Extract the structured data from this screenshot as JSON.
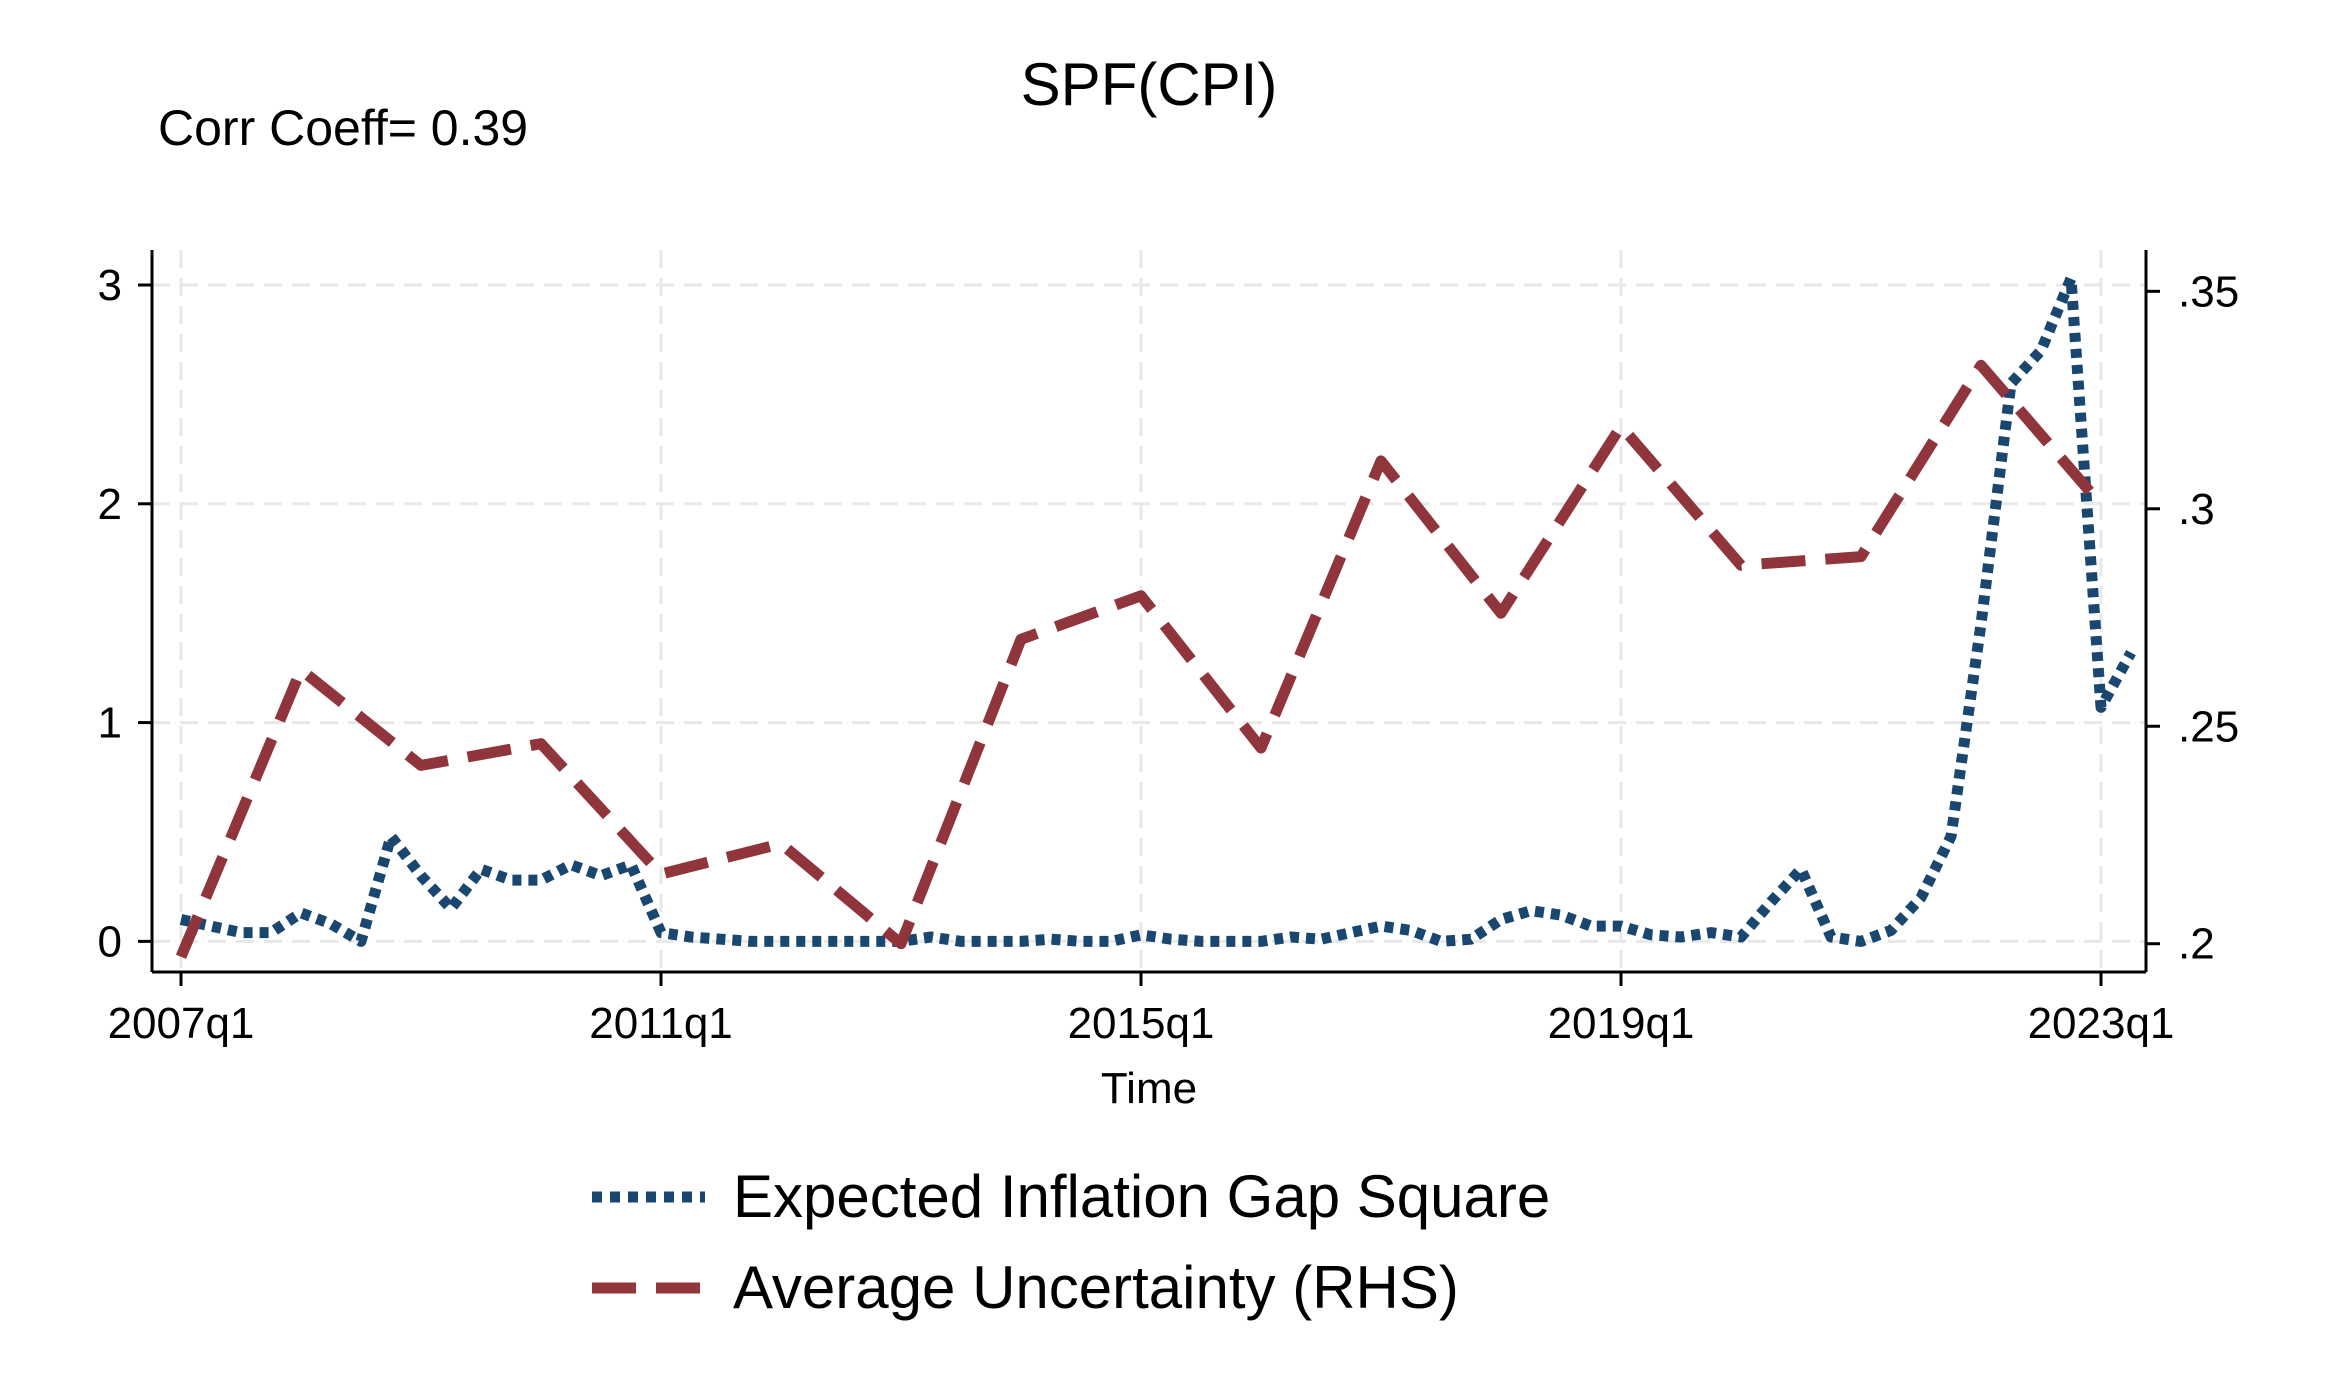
{
  "chart_data": {
    "type": "line",
    "title": "SPF(CPI)",
    "subtitle": "Corr Coeff= 0.39",
    "xlabel": "Time",
    "x_ticks": [
      "2007q1",
      "2011q1",
      "2015q1",
      "2019q1",
      "2023q1"
    ],
    "xlim": [
      "2007q1",
      "2023q3"
    ],
    "y_left": {
      "ticks": [
        "0",
        "1",
        "2",
        "3"
      ],
      "ylim": [
        -0.14,
        3.16
      ]
    },
    "y_right": {
      "ticks": [
        ".2",
        ".25",
        ".3",
        ".35"
      ],
      "ylim": [
        0.1935,
        0.3595
      ]
    },
    "grid": true,
    "legend_position": "bottom",
    "series": [
      {
        "name": "Expected Inflation Gap Square",
        "axis": "left",
        "style": "dotted",
        "color": "#1a476f",
        "x": [
          "2007q1",
          "2007q2",
          "2007q3",
          "2007q4",
          "2008q1",
          "2008q2",
          "2008q3",
          "2008q4",
          "2009q1",
          "2009q2",
          "2009q3",
          "2009q4",
          "2010q1",
          "2010q2",
          "2010q3",
          "2010q4",
          "2011q1",
          "2011q2",
          "2011q3",
          "2011q4",
          "2012q1",
          "2012q2",
          "2012q3",
          "2012q4",
          "2013q1",
          "2013q2",
          "2013q3",
          "2013q4",
          "2014q1",
          "2014q2",
          "2014q3",
          "2014q4",
          "2015q1",
          "2015q2",
          "2015q3",
          "2015q4",
          "2016q1",
          "2016q2",
          "2016q3",
          "2016q4",
          "2017q1",
          "2017q2",
          "2017q3",
          "2017q4",
          "2018q1",
          "2018q2",
          "2018q3",
          "2018q4",
          "2019q1",
          "2019q2",
          "2019q3",
          "2019q4",
          "2020q1",
          "2020q2",
          "2020q3",
          "2020q4",
          "2021q1",
          "2021q2",
          "2021q3",
          "2021q4",
          "2022q1",
          "2022q2",
          "2022q3",
          "2022q4",
          "2023q1",
          "2023q2"
        ],
        "values": [
          0.1,
          0.07,
          0.04,
          0.04,
          0.13,
          0.08,
          0.0,
          0.48,
          0.3,
          0.15,
          0.33,
          0.28,
          0.28,
          0.35,
          0.3,
          0.35,
          0.04,
          0.02,
          0.01,
          0.0,
          0.0,
          0.0,
          0.0,
          0.0,
          0.0,
          0.02,
          0.0,
          0.0,
          0.0,
          0.01,
          0.0,
          0.0,
          0.03,
          0.01,
          0.0,
          0.0,
          0.0,
          0.02,
          0.01,
          0.04,
          0.07,
          0.05,
          0.0,
          0.01,
          0.1,
          0.14,
          0.12,
          0.07,
          0.07,
          0.03,
          0.02,
          0.04,
          0.02,
          0.18,
          0.33,
          0.02,
          0.0,
          0.05,
          0.2,
          0.48,
          1.45,
          2.55,
          2.7,
          3.03,
          1.07,
          1.32
        ]
      },
      {
        "name": "Average Uncertainty (RHS)",
        "axis": "right",
        "style": "dashed",
        "color": "#90353b",
        "x": [
          "2007q1",
          "2008q1",
          "2009q1",
          "2010q1",
          "2011q1",
          "2012q1",
          "2013q1",
          "2014q1",
          "2015q1",
          "2016q1",
          "2017q1",
          "2018q1",
          "2019q1",
          "2020q1",
          "2021q1",
          "2022q1",
          "2023q1"
        ],
        "values": [
          0.197,
          0.263,
          0.241,
          0.246,
          0.216,
          0.223,
          0.2,
          0.27,
          0.28,
          0.245,
          0.311,
          0.276,
          0.319,
          0.287,
          0.289,
          0.333,
          0.301
        ]
      }
    ]
  }
}
